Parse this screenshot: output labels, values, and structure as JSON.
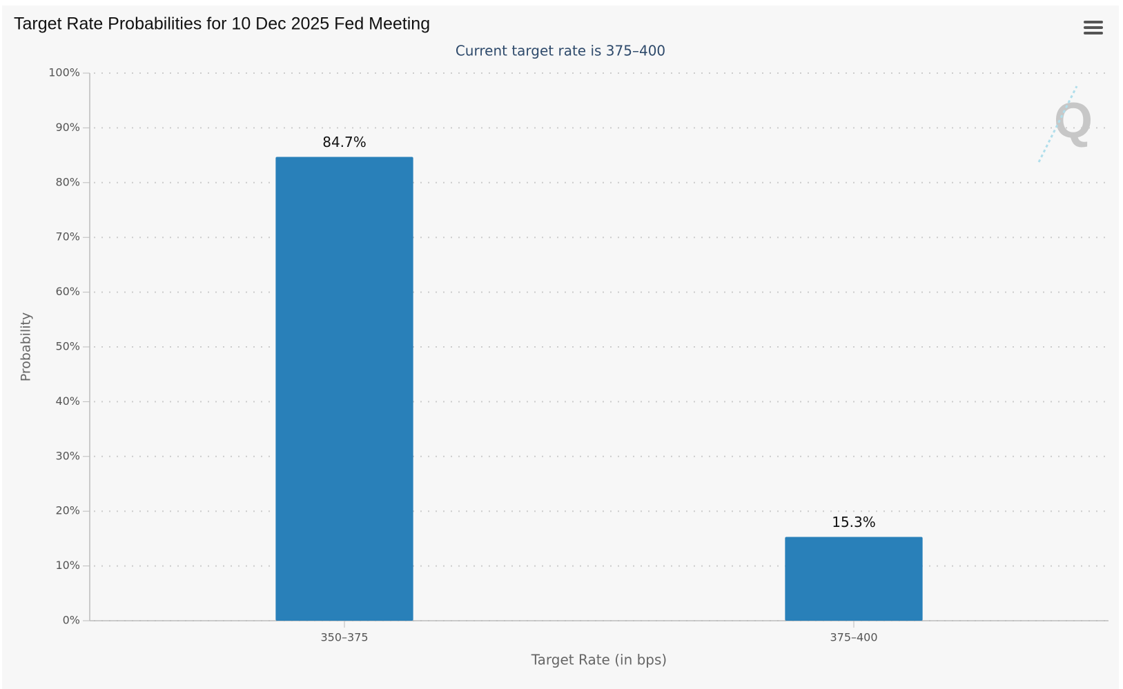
{
  "chart_data": {
    "type": "bar",
    "title": "Target Rate Probabilities for 10 Dec 2025 Fed Meeting",
    "subtitle": "Current target rate is 375–400",
    "x_label": "Target Rate (in bps)",
    "y_label": "Probability",
    "categories": [
      "350–375",
      "375–400"
    ],
    "values": [
      84.7,
      15.3
    ],
    "value_labels": [
      "84.7%",
      "15.3%"
    ],
    "color": "#2980b9",
    "ylim": [
      0,
      100
    ],
    "yticks": [
      {
        "value": 0,
        "label": "0%"
      },
      {
        "value": 10,
        "label": "10%"
      },
      {
        "value": 20,
        "label": "20%"
      },
      {
        "value": 30,
        "label": "30%"
      },
      {
        "value": 40,
        "label": "40%"
      },
      {
        "value": 50,
        "label": "50%"
      },
      {
        "value": 60,
        "label": "60%"
      },
      {
        "value": 70,
        "label": "70%"
      },
      {
        "value": 80,
        "label": "80%"
      },
      {
        "value": 90,
        "label": "90%"
      },
      {
        "value": 100,
        "label": "100%"
      }
    ],
    "grid": true
  }
}
